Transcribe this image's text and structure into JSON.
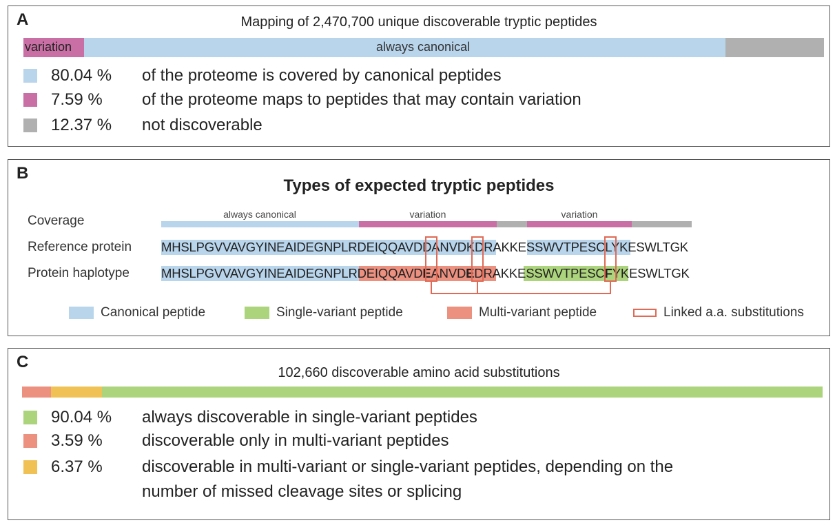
{
  "panel_a": {
    "label": "A",
    "title": "Mapping of 2,470,700 unique discoverable tryptic peptides",
    "bar": {
      "variation_label": "variation",
      "canonical_label": "always canonical"
    },
    "legend": [
      {
        "pct": "80.04 %",
        "desc": "of the proteome is covered by canonical peptides",
        "color": "#b8d5ec"
      },
      {
        "pct": "7.59 %",
        "desc": "of the proteome maps to peptides that may contain variation",
        "color": "#c96fa5"
      },
      {
        "pct": "12.37 %",
        "desc": "not discoverable",
        "color": "#b0b0b0"
      }
    ]
  },
  "panel_b": {
    "label": "B",
    "title": "Types of expected tryptic peptides",
    "coverage_label": "Coverage",
    "reference_label": "Reference protein",
    "haplotype_label": "Protein haplotype",
    "coverage": {
      "canonical": "always canonical",
      "variation1": "variation",
      "variation2": "variation"
    },
    "reference_sequence": "MHSLPGVVAVGYINEAIDEGNPLRDEIQQAVDDANVDKDRAKKESSWVTPESCLYKESWLTGK",
    "haplotype_sequence": "MHSLPGVVAVGYINEAIDEGNPLRDEIQQAVDEANVDEDRAKKESSWVTPESCFYKESWLTGK",
    "legend": {
      "canonical": "Canonical peptide",
      "single": "Single-variant peptide",
      "multi": "Multi-variant peptide",
      "linked": "Linked a.a. substitutions"
    },
    "colors": {
      "canonical": "#b8d5ec",
      "single": "#acd47c",
      "multi": "#ec9080",
      "variation": "#c96fa5",
      "grey": "#b0b0b0",
      "linked": "#e06a55"
    }
  },
  "panel_c": {
    "label": "C",
    "title": "102,660 discoverable amino acid substitutions",
    "legend": [
      {
        "pct": "90.04 %",
        "desc": "always discoverable in single-variant peptides",
        "color": "#acd47c"
      },
      {
        "pct": "3.59 %",
        "desc": "discoverable only in multi-variant peptides",
        "color": "#ec9080"
      },
      {
        "pct": "6.37 %",
        "desc": "discoverable in multi-variant or single-variant peptides, depending on the",
        "desc2": "number of missed cleavage sites or splicing",
        "color": "#f0c256"
      }
    ]
  }
}
